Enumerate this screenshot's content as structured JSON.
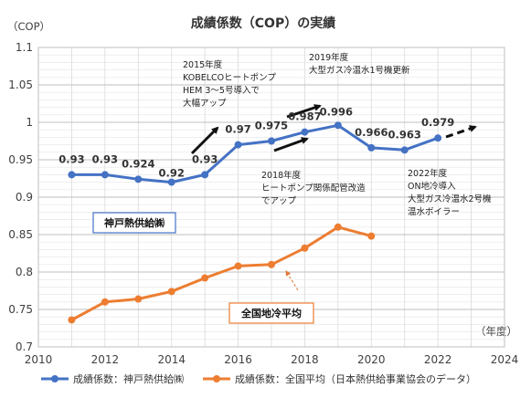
{
  "chart_data": {
    "type": "line",
    "title": "成績係数（COP）の実績",
    "ylabel": "（COP）",
    "xlabel": "（年度）",
    "xlim": [
      2010,
      2024
    ],
    "ylim": [
      0.7,
      1.1
    ],
    "x_ticks": [
      "2010",
      "2012",
      "2014",
      "2016",
      "2018",
      "2020",
      "2022",
      "2024"
    ],
    "y_ticks": [
      "0.7",
      "0.75",
      "0.8",
      "0.85",
      "0.9",
      "0.95",
      "1",
      "1.05",
      "1.1"
    ],
    "grid": true,
    "legend_position": "bottom",
    "colors": {
      "kobe": "#4472C4",
      "national": "#ED7D31"
    },
    "series": [
      {
        "name": "成績係数：神戸熱供給㈱",
        "x": [
          2011,
          2012,
          2013,
          2014,
          2015,
          2016,
          2017,
          2018,
          2019,
          2020,
          2021,
          2022
        ],
        "values": [
          0.93,
          0.93,
          0.924,
          0.92,
          0.93,
          0.97,
          0.975,
          0.987,
          0.996,
          0.966,
          0.963,
          0.979
        ],
        "labels": [
          "0.93",
          "0.93",
          "0.924",
          "0.92",
          "0.93",
          "0.97",
          "0.975",
          "0.987",
          "0.996",
          "0.966",
          "0.963",
          "0.979"
        ]
      },
      {
        "name": "成績係数：全国平均（日本熱供給事業協会のデータ）",
        "x": [
          2011,
          2012,
          2013,
          2014,
          2015,
          2016,
          2017,
          2018,
          2019,
          2020
        ],
        "values": [
          0.736,
          0.76,
          0.764,
          0.774,
          0.792,
          0.808,
          0.81,
          0.832,
          0.86,
          0.848
        ]
      }
    ],
    "annotations": {
      "kobe_box": "神戸熱供給㈱",
      "national_box": "全国地冷平均",
      "a2015": [
        "2015年度",
        "KOBELCOヒートポンプ",
        "HEM 3～5号導入で",
        "大幅アップ"
      ],
      "a2018": [
        "2018年度",
        "ヒートポンプ関係配管改造",
        "でアップ"
      ],
      "a2019": [
        "2019年度",
        "大型ガス冷温水1号機更新"
      ],
      "a2022": [
        "2022年度",
        "ON地冷導入",
        "大型ガス冷温水2号機",
        "温水ボイラー"
      ]
    }
  }
}
